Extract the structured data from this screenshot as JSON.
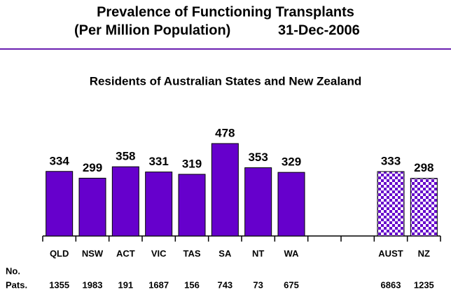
{
  "chart_data": {
    "type": "bar",
    "title": [
      "Prevalence of Functioning Transplants",
      "(Per Million Population)"
    ],
    "date": "31-Dec-2006",
    "subtitle": "Residents of Australian States and New Zealand",
    "categories": [
      "QLD",
      "NSW",
      "ACT",
      "VIC",
      "TAS",
      "SA",
      "NT",
      "WA",
      null,
      null,
      "AUST",
      "NZ"
    ],
    "values": [
      334,
      299,
      358,
      331,
      319,
      478,
      353,
      329,
      null,
      null,
      333,
      298
    ],
    "color": "#6600cc",
    "checkered": [
      false,
      false,
      false,
      false,
      false,
      false,
      false,
      false,
      false,
      false,
      true,
      true
    ],
    "count_label": [
      "No.",
      "Pats."
    ],
    "counts": [
      1355,
      1983,
      191,
      1687,
      156,
      743,
      73,
      675,
      null,
      null,
      6863,
      1235
    ]
  }
}
